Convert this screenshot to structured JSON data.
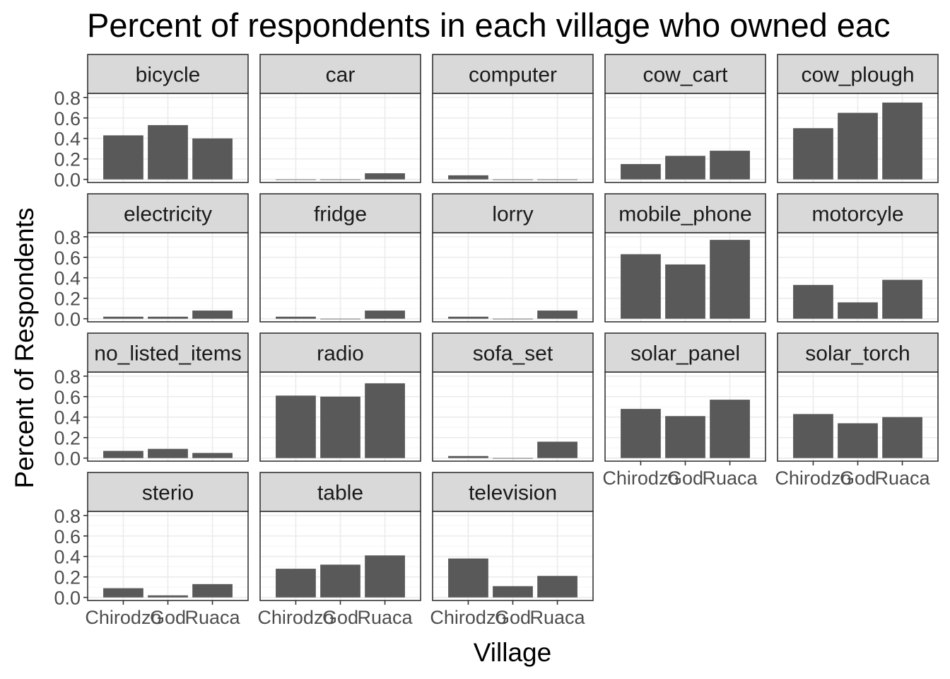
{
  "chart_data": {
    "type": "bar",
    "title": "Percent of respondents in each village who owned eac",
    "xlabel": "Village",
    "ylabel": "Percent of Respondents",
    "categories": [
      "Chirodzo",
      "God",
      "Ruaca"
    ],
    "ylim": [
      -0.03,
      0.84
    ],
    "yticks": [
      "0.0",
      "0.2",
      "0.4",
      "0.6",
      "0.8"
    ],
    "grid": true,
    "facet_ncol": 5,
    "colors": {
      "bar": "#595959",
      "strip_bg": "#d9d9d9",
      "strip_border": "#333333",
      "panel_border": "#333333",
      "grid_major": "#ebebeb",
      "grid_minor": "#f5f5f5"
    },
    "panels": [
      {
        "label": "bicycle",
        "values": [
          0.43,
          0.53,
          0.4
        ]
      },
      {
        "label": "car",
        "values": [
          0.0,
          0.0,
          0.06
        ]
      },
      {
        "label": "computer",
        "values": [
          0.04,
          0.0,
          0.0
        ]
      },
      {
        "label": "cow_cart",
        "values": [
          0.15,
          0.23,
          0.28
        ]
      },
      {
        "label": "cow_plough",
        "values": [
          0.5,
          0.65,
          0.75
        ]
      },
      {
        "label": "electricity",
        "values": [
          0.02,
          0.02,
          0.08
        ]
      },
      {
        "label": "fridge",
        "values": [
          0.02,
          0.0,
          0.08
        ]
      },
      {
        "label": "lorry",
        "values": [
          0.02,
          0.0,
          0.08
        ]
      },
      {
        "label": "mobile_phone",
        "values": [
          0.63,
          0.53,
          0.77
        ]
      },
      {
        "label": "motorcyle",
        "values": [
          0.33,
          0.16,
          0.38
        ]
      },
      {
        "label": "no_listed_items",
        "values": [
          0.07,
          0.09,
          0.05
        ]
      },
      {
        "label": "radio",
        "values": [
          0.61,
          0.6,
          0.73
        ]
      },
      {
        "label": "sofa_set",
        "values": [
          0.02,
          0.0,
          0.16
        ]
      },
      {
        "label": "solar_panel",
        "values": [
          0.48,
          0.41,
          0.57
        ]
      },
      {
        "label": "solar_torch",
        "values": [
          0.43,
          0.34,
          0.4
        ]
      },
      {
        "label": "sterio",
        "values": [
          0.09,
          0.02,
          0.13
        ]
      },
      {
        "label": "table",
        "values": [
          0.28,
          0.32,
          0.41
        ]
      },
      {
        "label": "television",
        "values": [
          0.38,
          0.11,
          0.21
        ]
      }
    ]
  }
}
